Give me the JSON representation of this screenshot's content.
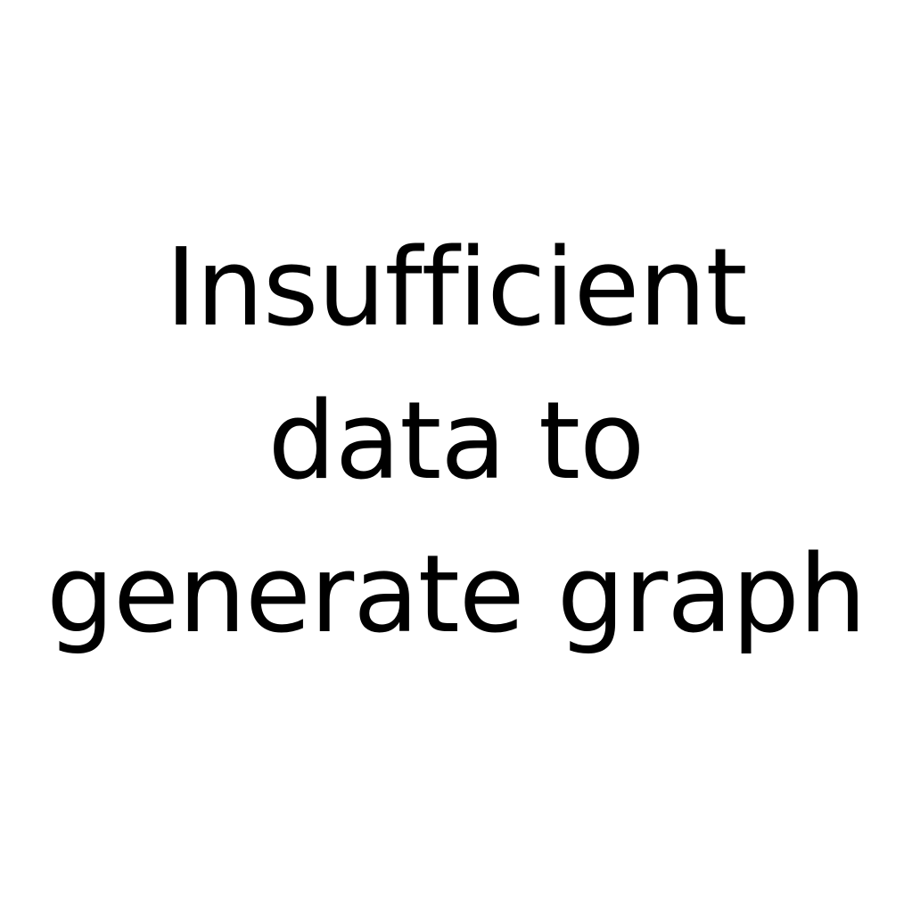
{
  "message": {
    "lines": [
      "Insufficient",
      "data to",
      "generate graph"
    ]
  },
  "colors": {
    "background": "#ffffff",
    "text": "#000000"
  }
}
